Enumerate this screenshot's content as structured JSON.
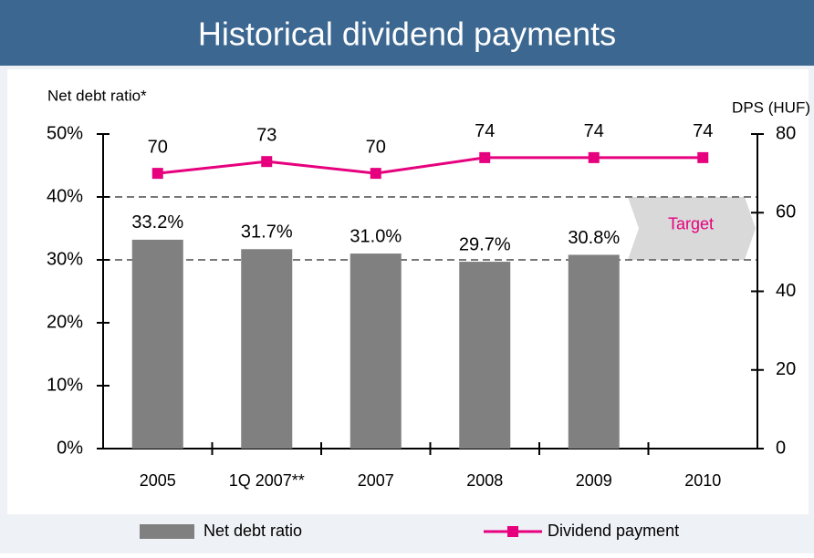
{
  "chart_data": {
    "type": "bar",
    "title": "Historical dividend payments",
    "y_label": "Net debt ratio*",
    "y2_label": "DPS (HUF)",
    "categories": [
      "2005",
      "1Q 2007**",
      "2007",
      "2008",
      "2009",
      "2010"
    ],
    "series": [
      {
        "name": "Net debt ratio",
        "type": "bar",
        "color": "#808080",
        "values": [
          33.2,
          31.7,
          31.0,
          29.7,
          30.8,
          null
        ],
        "value_labels": [
          "33.2%",
          "31.7%",
          "31.0%",
          "29.7%",
          "30.8%",
          null
        ]
      },
      {
        "name": "Dividend payment",
        "type": "line",
        "axis": "y2",
        "color": "#e6007e",
        "values": [
          70,
          73,
          70,
          74,
          74,
          74
        ]
      }
    ],
    "ylim": [
      0,
      50
    ],
    "yticks": [
      {
        "value": 0,
        "label": "0%"
      },
      {
        "value": 10,
        "label": "10%"
      },
      {
        "value": 20,
        "label": "20%"
      },
      {
        "value": 30,
        "label": "30%"
      },
      {
        "value": 40,
        "label": "40%"
      },
      {
        "value": 50,
        "label": "50%"
      }
    ],
    "y2lim": [
      0,
      80
    ],
    "y2ticks": [
      0,
      20,
      40,
      60,
      80
    ],
    "target": {
      "label": "Target",
      "range": [
        30,
        40
      ]
    },
    "legend": "bottom"
  }
}
